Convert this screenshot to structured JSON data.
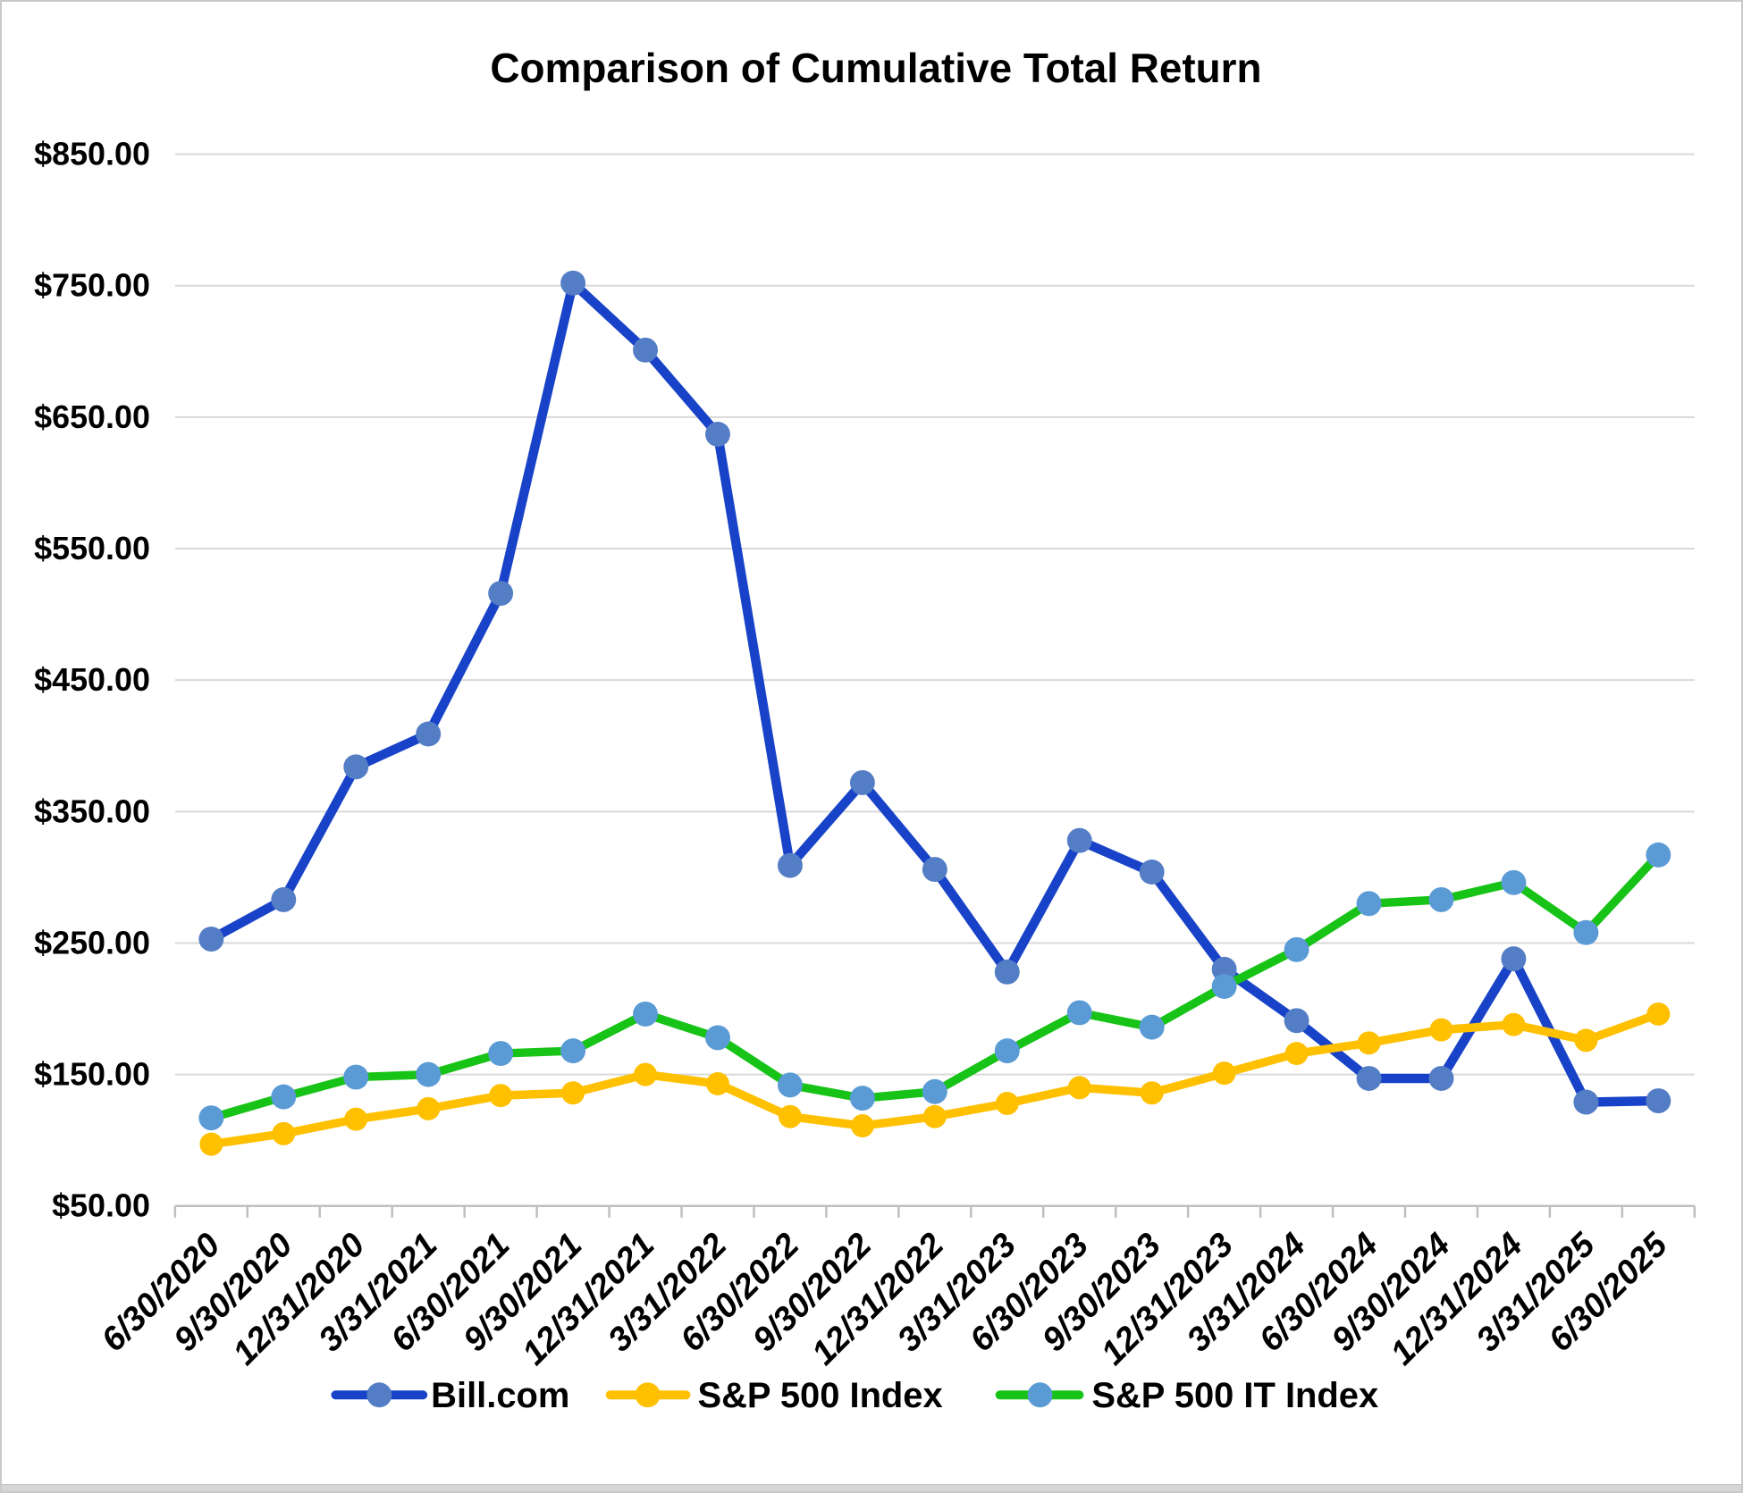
{
  "title": "Comparison of Cumulative Total Return",
  "y_axis": {
    "tick_labels": [
      "$850.00",
      "$750.00",
      "$650.00",
      "$550.00",
      "$450.00",
      "$350.00",
      "$250.00",
      "$150.00",
      "$50.00"
    ],
    "tick_values": [
      850,
      750,
      650,
      550,
      450,
      350,
      250,
      150,
      50
    ]
  },
  "x_axis": {
    "labels": [
      "6/30/2020",
      "9/30/2020",
      "12/31/2020",
      "3/31/2021",
      "6/30/2021",
      "9/30/2021",
      "12/31/2021",
      "3/31/2022",
      "6/30/2022",
      "9/30/2022",
      "12/31/2022",
      "3/31/2023",
      "6/30/2023",
      "9/30/2023",
      "12/31/2023",
      "3/31/2024",
      "6/30/2024",
      "9/30/2024",
      "12/31/2024",
      "3/31/2025",
      "6/30/2025"
    ]
  },
  "legend": {
    "items": [
      {
        "label": "Bill.com"
      },
      {
        "label": "S&P 500 Index"
      },
      {
        "label": "S&P 500 IT Index"
      }
    ],
    "position": "bottom"
  },
  "colors": {
    "billcom_line": "#1843C8",
    "billcom_marker": "#537DC5",
    "sp500_line": "#FFC000",
    "sp500_marker": "#FFC000",
    "sp500it_line": "#17C317",
    "sp500it_marker": "#5B9BD5",
    "gridline": "#D9D9D9",
    "axis": "#BFBFBF",
    "text": "#000000"
  },
  "chart_data": {
    "type": "line",
    "title": "Comparison of Cumulative Total Return",
    "categories": [
      "6/30/2020",
      "9/30/2020",
      "12/31/2020",
      "3/31/2021",
      "6/30/2021",
      "9/30/2021",
      "12/31/2021",
      "3/31/2022",
      "6/30/2022",
      "9/30/2022",
      "12/31/2022",
      "3/31/2023",
      "6/30/2023",
      "9/30/2023",
      "12/31/2023",
      "3/31/2024",
      "6/30/2024",
      "9/30/2024",
      "12/31/2024",
      "3/31/2025",
      "6/30/2025"
    ],
    "series": [
      {
        "name": "Bill.com",
        "values": [
          253,
          283,
          384,
          409,
          516,
          752,
          701,
          637,
          309,
          372,
          306,
          228,
          328,
          304,
          230,
          191,
          147,
          147,
          238,
          129,
          130
        ],
        "line_color": "#1843C8",
        "marker_color": "#537DC5"
      },
      {
        "name": "S&P 500 Index",
        "values": [
          97,
          105,
          116,
          124,
          134,
          136,
          150,
          143,
          118,
          111,
          118,
          128,
          140,
          136,
          151,
          166,
          174,
          184,
          188,
          176,
          196
        ],
        "line_color": "#FFC000",
        "marker_color": "#FFC000"
      },
      {
        "name": "S&P 500 IT Index",
        "values": [
          117,
          133,
          148,
          150,
          166,
          168,
          196,
          178,
          142,
          132,
          137,
          168,
          197,
          186,
          217,
          245,
          280,
          283,
          296,
          258,
          317
        ],
        "line_color": "#17C317",
        "marker_color": "#5B9BD5"
      }
    ],
    "ylim": [
      50,
      850
    ],
    "y_tick_step": 100,
    "grid": true,
    "legend_position": "bottom",
    "marker": "circle"
  }
}
